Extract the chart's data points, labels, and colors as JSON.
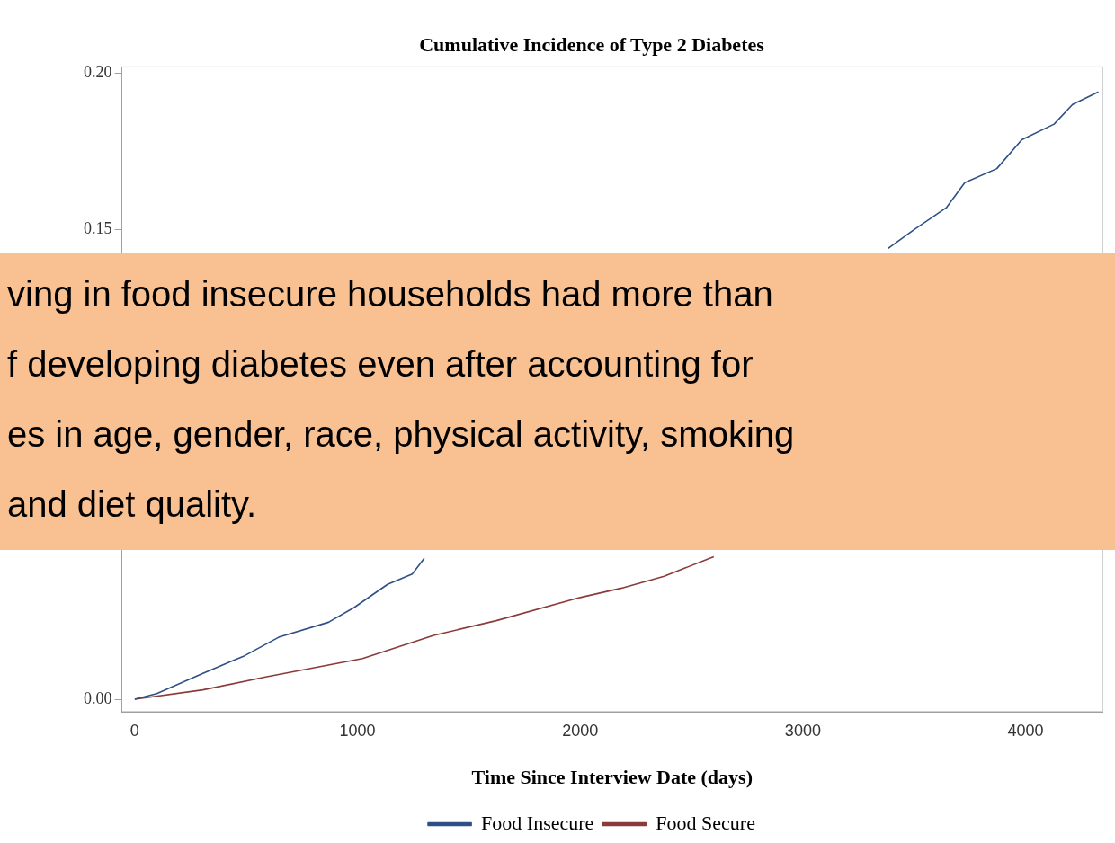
{
  "chart_data": {
    "type": "line",
    "title": "Cumulative Incidence of Type 2 Diabetes",
    "xlabel": "Time Since Interview Date (days)",
    "xlim": [
      -58,
      4345
    ],
    "xticks": [
      0,
      1000,
      2000,
      3000,
      4000
    ],
    "ylim": [
      -0.004,
      0.202
    ],
    "yticks": [
      {
        "value": 0,
        "label": "0.00"
      },
      {
        "value": 0.15,
        "label": "0.15"
      },
      {
        "value": 0.2,
        "label": "0.20"
      }
    ],
    "grid": false,
    "legend": "bottom",
    "marker": "none",
    "line_style": "solid",
    "series": [
      {
        "name": "Food Insecure",
        "color": "#2f4f86",
        "x": [
          0,
          99,
          306,
          493,
          646,
          870,
          985,
          1135,
          1246,
          1300,
          null,
          3383,
          3499,
          3644,
          3727,
          3871,
          3983,
          4128,
          4211,
          4327
        ],
        "values": [
          0,
          0.0018,
          0.0083,
          0.0139,
          0.0198,
          0.0246,
          0.0293,
          0.0367,
          0.04,
          0.045,
          null,
          0.144,
          0.15,
          0.157,
          0.165,
          0.1695,
          0.1787,
          0.1837,
          0.19,
          0.194
        ]
      },
      {
        "name": "Food Secure",
        "color": "#8b3a3a",
        "x": [
          0,
          306,
          588,
          1023,
          1342,
          1623,
          2000,
          2186,
          2377,
          2600
        ],
        "values": [
          0,
          0.003,
          0.0071,
          0.013,
          0.0204,
          0.0251,
          0.0325,
          0.0355,
          0.0393,
          0.0455
        ]
      }
    ],
    "annotations": [
      "ving in food insecure households had more than",
      "f developing diabetes even after accounting for",
      "es in age, gender, race, physical activity, smoking",
      "and diet quality."
    ]
  }
}
